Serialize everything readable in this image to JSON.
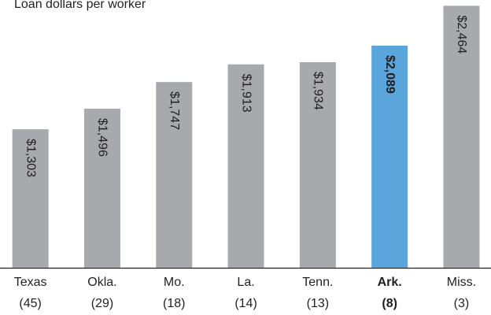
{
  "chart_data": {
    "type": "bar",
    "title": "Loan dollars per worker",
    "categories": [
      "Texas",
      "Okla.",
      "Mo.",
      "La.",
      "Tenn.",
      "Ark.",
      "Miss."
    ],
    "category_notes": [
      "(45)",
      "(29)",
      "(18)",
      "(14)",
      "(13)",
      "(8)",
      "(3)"
    ],
    "values": [
      1303,
      1496,
      1747,
      1913,
      1934,
      2089,
      2464
    ],
    "value_labels": [
      "$1,303",
      "$1,496",
      "$1,747",
      "$1,913",
      "$1,934",
      "$2,089",
      "$2,464"
    ],
    "colors": [
      "#a7a9ac",
      "#a7a9ac",
      "#a7a9ac",
      "#a7a9ac",
      "#a7a9ac",
      "#5aa5db",
      "#a7a9ac"
    ],
    "highlight_category": "Ark.",
    "ylim": [
      0,
      2500
    ]
  }
}
